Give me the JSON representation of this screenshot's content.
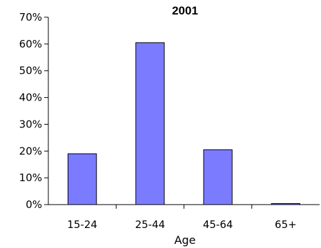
{
  "chart_data": {
    "type": "bar",
    "title": "2001",
    "xlabel": "Age",
    "ylabel": "",
    "categories": [
      "15-24",
      "25-44",
      "45-64",
      "65+"
    ],
    "values": [
      19,
      60.5,
      20.5,
      0.4
    ],
    "ylim": [
      0,
      70
    ],
    "yticks": [
      0,
      10,
      20,
      30,
      40,
      50,
      60,
      70
    ],
    "ytick_labels": [
      "0%",
      "10%",
      "20%",
      "30%",
      "40%",
      "50%",
      "60%",
      "70%"
    ],
    "bar_color": "#7b7bff",
    "bar_edge_color": "#000000",
    "grid": false,
    "legend": "none"
  }
}
